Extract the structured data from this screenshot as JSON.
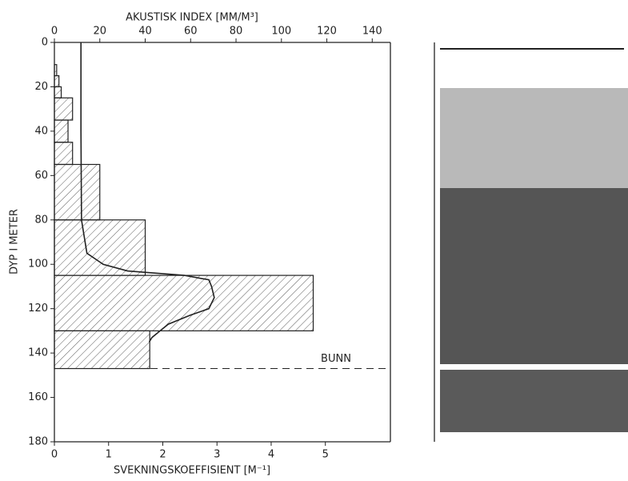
{
  "chart_data": {
    "type": "histogram",
    "x_top_label": "AKUSTISK INDEX [MM/M³]",
    "x_label": "SVEKNINGSKOEFFISIENT [M⁻¹]",
    "y_label": "DYP I METER",
    "ylim": [
      0,
      180
    ],
    "yticks": [
      0,
      20,
      40,
      60,
      80,
      100,
      120,
      140,
      160,
      180
    ],
    "xlim": [
      0,
      148
    ],
    "xticks": [
      0,
      20,
      40,
      60,
      80,
      100,
      120,
      140
    ],
    "x2lim": [
      0,
      6.2
    ],
    "x2ticks": [
      0,
      1,
      2,
      3,
      4,
      5
    ],
    "bins": [
      10,
      15,
      20,
      25,
      35,
      45,
      55,
      80,
      105,
      130,
      147
    ],
    "values": [
      1,
      2,
      3,
      8,
      6,
      8,
      20,
      40,
      114,
      42
    ],
    "line": {
      "axis": "x2",
      "depth": [
        0,
        40,
        80,
        95,
        100,
        103,
        105,
        107,
        110,
        115,
        120,
        123,
        127,
        130,
        133,
        135
      ],
      "values": [
        0.49,
        0.49,
        0.5,
        0.6,
        0.9,
        1.35,
        2.4,
        2.85,
        2.9,
        2.95,
        2.85,
        2.5,
        2.1,
        1.95,
        1.8,
        1.75
      ]
    },
    "annotation": {
      "text": "BUNN",
      "value": 147
    }
  }
}
